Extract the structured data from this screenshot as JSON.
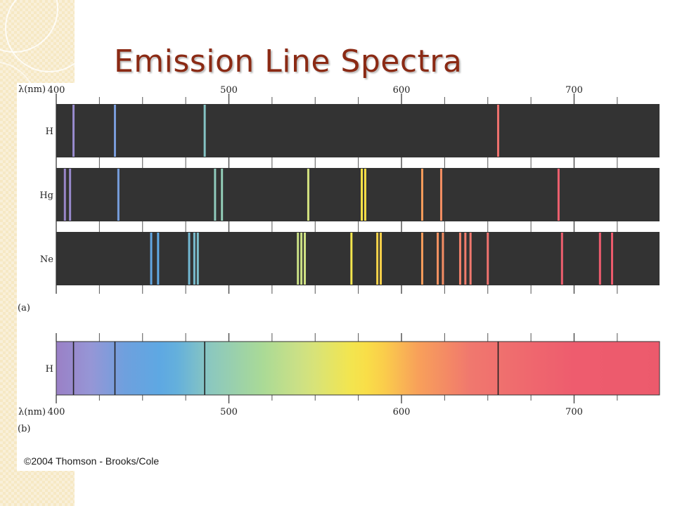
{
  "title": "Emission Line Spectra",
  "copyright": "©2004 Thomson - Brooks/Cole",
  "colors": {
    "title": "#8b2a14",
    "panel_background": "#333333",
    "axis_tick": "#555555"
  },
  "chart_data": [
    {
      "type": "emission-spectrum",
      "panel_label": "(a)",
      "axis_label": "λ(nm)",
      "xlim": [
        400,
        750
      ],
      "ticks": [
        400,
        500,
        600,
        700
      ],
      "tick_labels": [
        "400",
        "500",
        "600",
        "700"
      ],
      "grid": true,
      "rows": [
        {
          "label": "H",
          "lines_nm": [
            410,
            434,
            486,
            656
          ]
        },
        {
          "label": "Hg",
          "lines_nm": [
            405,
            408,
            436,
            492,
            496,
            546,
            577,
            579,
            612,
            623,
            691
          ]
        },
        {
          "label": "Ne",
          "lines_nm": [
            455,
            459,
            477,
            480,
            482,
            540,
            542,
            544,
            571,
            586,
            588,
            612,
            621,
            624,
            634,
            637,
            640,
            650,
            693,
            715,
            722
          ]
        }
      ]
    },
    {
      "type": "absorption-spectrum",
      "panel_label": "(b)",
      "axis_label": "λ(nm)",
      "xlim": [
        400,
        750
      ],
      "ticks": [
        400,
        500,
        600,
        700
      ],
      "tick_labels": [
        "400",
        "500",
        "600",
        "700"
      ],
      "rows": [
        {
          "label": "H",
          "lines_nm": [
            410,
            434,
            486,
            656
          ]
        }
      ]
    }
  ]
}
